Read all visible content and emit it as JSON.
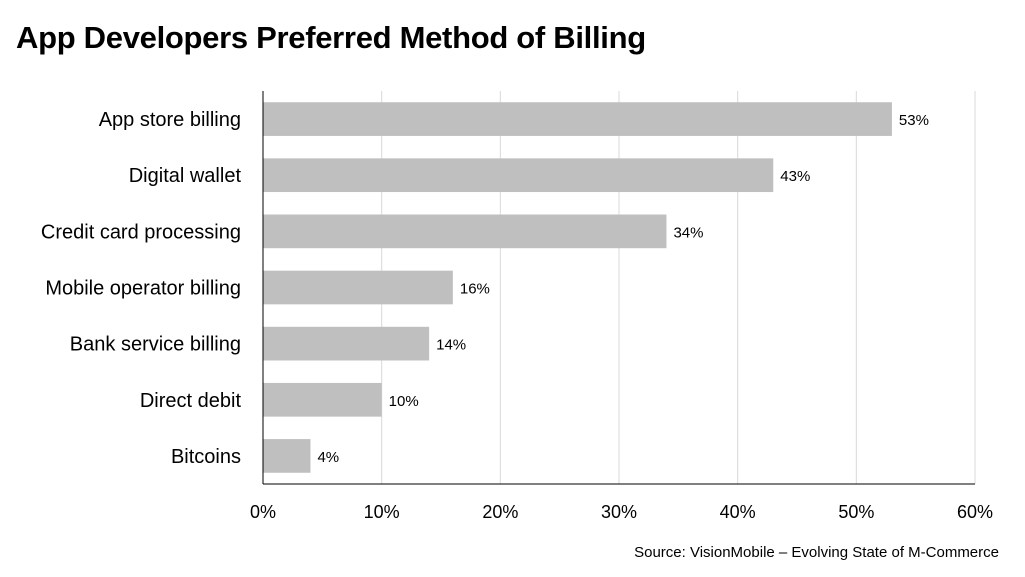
{
  "chart_data": {
    "type": "bar",
    "orientation": "horizontal",
    "title": "App Developers Preferred Method of Billing",
    "source": "Source: VisionMobile – Evolving State of M-Commerce",
    "categories": [
      "App store billing",
      "Digital wallet",
      "Credit card processing",
      "Mobile operator billing",
      "Bank service billing",
      "Direct debit",
      "Bitcoins"
    ],
    "values": [
      53,
      43,
      34,
      16,
      14,
      10,
      4
    ],
    "value_labels": [
      "53%",
      "43%",
      "34%",
      "16%",
      "14%",
      "10%",
      "4%"
    ],
    "xlim": [
      0,
      60
    ],
    "x_ticks": [
      0,
      10,
      20,
      30,
      40,
      50,
      60
    ],
    "x_tick_labels": [
      "0%",
      "10%",
      "20%",
      "30%",
      "40%",
      "50%",
      "60%"
    ],
    "xlabel": "",
    "ylabel": "",
    "grid": "vertical",
    "legend": "none",
    "colors": {
      "bar": "#bfbfbf",
      "gridline": "#d9d9d9",
      "axis": "#000000",
      "text": "#000000"
    }
  }
}
